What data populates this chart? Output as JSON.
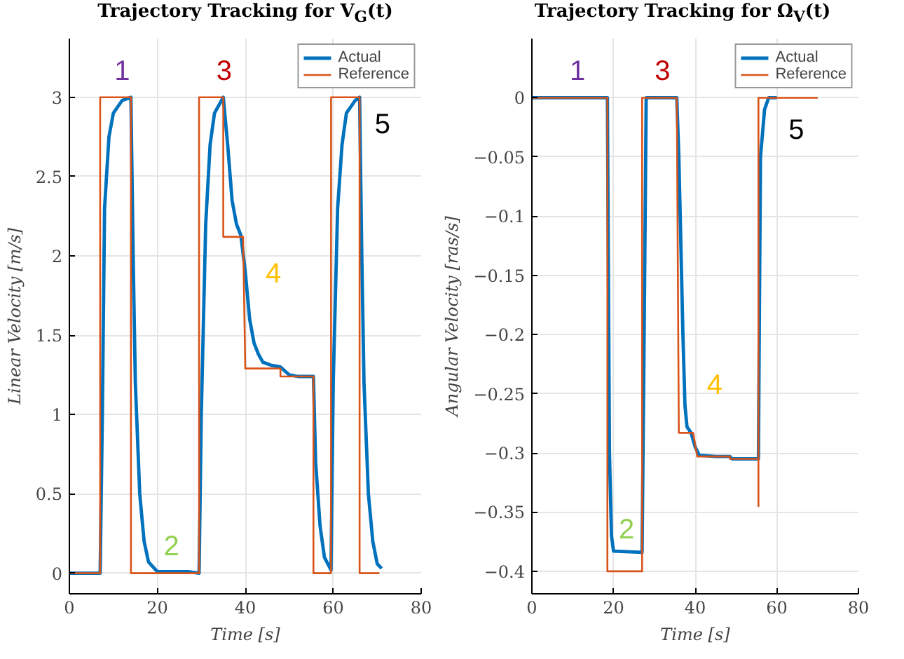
{
  "chart_data": [
    {
      "type": "line",
      "title": "Trajectory Tracking for V$_{G}$(t)",
      "xlabel": "Time [s]",
      "ylabel": "Linear Velocity [m/s]",
      "xlim": [
        0,
        80
      ],
      "ylim": [
        -0.13,
        3.37
      ],
      "xticks": [
        0,
        20,
        40,
        60,
        80
      ],
      "yticks": [
        0,
        0.5,
        1,
        1.5,
        2,
        2.5,
        3
      ],
      "grid": true,
      "legend": "top right",
      "series": [
        {
          "name": "Actual",
          "color": "#0072bd",
          "x": [
            0,
            7,
            7.5,
            8,
            9,
            10,
            12,
            14,
            14.5,
            15,
            16,
            17,
            18,
            20,
            27,
            29.5,
            30,
            31,
            32,
            33,
            35,
            36,
            37,
            38,
            39,
            40,
            41,
            42,
            43,
            44,
            46,
            48,
            50,
            52,
            55.5,
            56,
            57,
            58,
            59.5,
            60,
            61,
            62,
            63,
            65,
            66,
            66.5,
            67,
            68,
            69,
            70,
            71
          ],
          "values": [
            0,
            0,
            1.0,
            2.3,
            2.75,
            2.9,
            2.98,
            3.0,
            2.0,
            1.2,
            0.5,
            0.2,
            0.07,
            0.01,
            0.01,
            0.0,
            1.0,
            2.2,
            2.7,
            2.9,
            3.0,
            2.7,
            2.35,
            2.2,
            2.13,
            1.9,
            1.6,
            1.45,
            1.38,
            1.33,
            1.31,
            1.3,
            1.25,
            1.24,
            1.24,
            0.7,
            0.3,
            0.1,
            0.02,
            1.2,
            2.3,
            2.7,
            2.9,
            2.98,
            3.0,
            2.0,
            1.2,
            0.5,
            0.2,
            0.06,
            0.03
          ]
        },
        {
          "name": "Reference",
          "color": "#d95319",
          "x": [
            0,
            7,
            7,
            14,
            14,
            29.5,
            29.5,
            35,
            35,
            39.5,
            40,
            48,
            48,
            55.5,
            55.5,
            59.5,
            59.5,
            66,
            66,
            70.5
          ],
          "values": [
            0,
            0,
            3,
            3,
            0,
            0,
            3,
            3,
            2.12,
            2.12,
            1.29,
            1.29,
            1.24,
            1.24,
            0,
            0,
            3,
            3,
            0,
            0
          ]
        }
      ],
      "annotations": [
        "1",
        "2",
        "3",
        "4",
        "5"
      ]
    },
    {
      "type": "line",
      "title": "Trajectory Tracking for Ω$_{V}$(t)",
      "xlabel": "Time [s]",
      "ylabel": "Angular Velocity [ras/s]",
      "xlim": [
        0,
        80
      ],
      "ylim": [
        -0.419,
        0.05
      ],
      "xticks": [
        0,
        20,
        40,
        60,
        80
      ],
      "yticks": [
        0,
        {
          "value": -0.05,
          "label": "−0.05"
        },
        {
          "value": -0.1,
          "label": "−0.1"
        },
        {
          "value": -0.15,
          "label": "−0.15"
        },
        {
          "value": -0.2,
          "label": "−0.2"
        },
        {
          "value": -0.25,
          "label": "−0.25"
        },
        {
          "value": -0.3,
          "label": "−0.3"
        },
        {
          "value": -0.35,
          "label": "−0.35"
        },
        {
          "value": -0.4,
          "label": "−0.4"
        }
      ],
      "grid": true,
      "legend": "top right",
      "series": [
        {
          "name": "Actual",
          "color": "#0072bd",
          "x": [
            0,
            18.5,
            19,
            19.5,
            20,
            27,
            27.5,
            28,
            35.5,
            36,
            37,
            37.5,
            38,
            39,
            40,
            41,
            45,
            48.5,
            49,
            55.5,
            55.7,
            56,
            57,
            58,
            60
          ],
          "values": [
            0,
            0,
            -0.3,
            -0.37,
            -0.383,
            -0.384,
            -0.2,
            0,
            0,
            -0.05,
            -0.2,
            -0.26,
            -0.278,
            -0.283,
            -0.295,
            -0.302,
            -0.303,
            -0.303,
            -0.305,
            -0.305,
            -0.2,
            -0.05,
            -0.01,
            0,
            0
          ]
        },
        {
          "name": "Reference",
          "color": "#d95319",
          "x": [
            0,
            18.5,
            18.5,
            27,
            27,
            35.5,
            36,
            39.5,
            40.5,
            48.5,
            48.5,
            55.5,
            55.5,
            55.5,
            70
          ],
          "values": [
            0,
            0,
            -0.4,
            -0.4,
            0,
            0,
            -0.283,
            -0.283,
            -0.303,
            -0.303,
            -0.305,
            -0.305,
            -0.345,
            0,
            0
          ]
        }
      ],
      "annotations": [
        "1",
        "2",
        "3",
        "4",
        "5"
      ]
    }
  ]
}
